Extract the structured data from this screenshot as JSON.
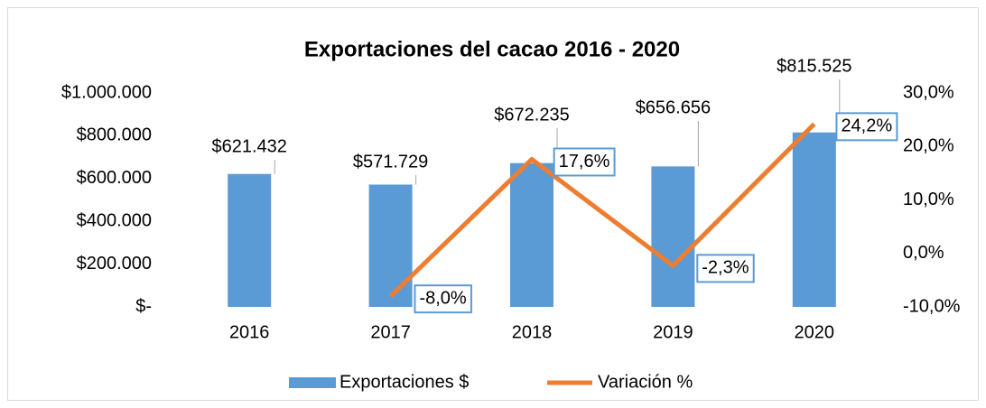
{
  "chart_data": {
    "type": "combo",
    "title": "Exportaciones del cacao 2016 - 2020",
    "categories": [
      "2016",
      "2017",
      "2018",
      "2019",
      "2020"
    ],
    "series": [
      {
        "name": "Exportaciones $",
        "type": "bar",
        "color": "#5b9bd5",
        "values": [
          621432,
          571729,
          672235,
          656656,
          815525
        ],
        "value_labels": [
          "$621.432",
          "$571.729",
          "$672.235",
          "$656.656",
          "$815.525"
        ]
      },
      {
        "name": "Variación %",
        "type": "line",
        "axis": "y2",
        "color": "#ed7d31",
        "values": [
          null,
          -8.0,
          17.6,
          -2.3,
          24.2
        ],
        "value_labels": [
          null,
          "-8,0%",
          "17,6%",
          "-2,3%",
          "24,2%"
        ]
      }
    ],
    "ylim": [
      0,
      1000000
    ],
    "yticks": [
      {
        "value": 0,
        "label": "$-"
      },
      {
        "value": 200000,
        "label": "$200.000"
      },
      {
        "value": 400000,
        "label": "$400.000"
      },
      {
        "value": 600000,
        "label": "$600.000"
      },
      {
        "value": 800000,
        "label": "$800.000"
      },
      {
        "value": 1000000,
        "label": "$1.000.000"
      }
    ],
    "y2lim": [
      -10,
      30
    ],
    "y2ticks": [
      {
        "value": -10,
        "label": "-10,0%"
      },
      {
        "value": 0,
        "label": "0,0%"
      },
      {
        "value": 10,
        "label": "10,0%"
      },
      {
        "value": 20,
        "label": "20,0%"
      },
      {
        "value": 30,
        "label": "30,0%"
      }
    ],
    "grid": false,
    "legend": "bottom"
  }
}
